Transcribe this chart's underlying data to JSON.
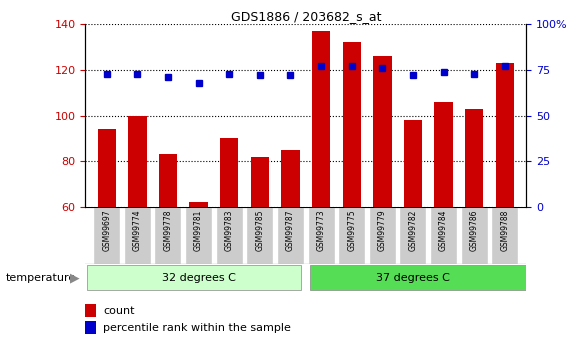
{
  "title": "GDS1886 / 203682_s_at",
  "samples": [
    "GSM99697",
    "GSM99774",
    "GSM99778",
    "GSM99781",
    "GSM99783",
    "GSM99785",
    "GSM99787",
    "GSM99773",
    "GSM99775",
    "GSM99779",
    "GSM99782",
    "GSM99784",
    "GSM99786",
    "GSM99788"
  ],
  "counts": [
    94,
    100,
    83,
    62,
    90,
    82,
    85,
    137,
    132,
    126,
    98,
    106,
    103,
    123
  ],
  "percentiles": [
    73,
    73,
    71,
    68,
    73,
    72,
    72,
    77,
    77,
    76,
    72,
    74,
    73,
    77
  ],
  "group1_label": "32 degrees C",
  "group2_label": "37 degrees C",
  "group1_count": 7,
  "group2_count": 7,
  "bar_color": "#CC0000",
  "dot_color": "#0000CC",
  "ylim_left": [
    60,
    140
  ],
  "ylim_right": [
    0,
    100
  ],
  "yticks_left": [
    60,
    80,
    100,
    120,
    140
  ],
  "yticks_right": [
    0,
    25,
    50,
    75,
    100
  ],
  "yticklabels_right": [
    "0",
    "25",
    "50",
    "75",
    "100%"
  ],
  "legend_count_label": "count",
  "legend_pct_label": "percentile rank within the sample",
  "temp_arrow_label": "temperature",
  "group1_color": "#ccffcc",
  "group2_color": "#55dd55",
  "tick_label_bg": "#cccccc",
  "background_color": "#ffffff"
}
